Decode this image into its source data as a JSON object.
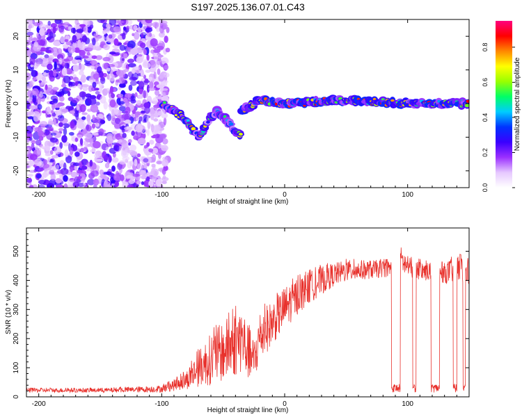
{
  "title": "S197.2025.136.07.01.C43",
  "chart_data": [
    {
      "type": "heatmap",
      "xlabel": "Height of straight line (km)",
      "ylabel": "Frequency (Hz)",
      "xlim": [
        -210,
        150
      ],
      "ylim": [
        -25,
        25
      ],
      "xticks": [
        -200,
        -100,
        0,
        100
      ],
      "yticks": [
        -20,
        -10,
        0,
        10,
        20
      ],
      "colorbar": {
        "label": "Normalized spectral amplitude",
        "range": [
          0.0,
          0.95
        ],
        "ticks": [
          "0.0",
          "0.2",
          "0.4",
          "0.6",
          "0.8"
        ],
        "colormap": [
          "#ffffff",
          "#e6c8ff",
          "#9b30ff",
          "#3a00ff",
          "#0033ff",
          "#00ccff",
          "#00ff66",
          "#99ff00",
          "#ffff00",
          "#ff8800",
          "#ff0000",
          "#ff007f"
        ]
      },
      "features": [
        {
          "desc": "noise",
          "x_range": [
            -210,
            -95
          ],
          "y_range": [
            -25,
            25
          ]
        },
        {
          "desc": "ridge",
          "points": [
            [
              -100,
              0
            ],
            [
              -90,
              -2
            ],
            [
              -80,
              -5
            ],
            [
              -75,
              -8
            ],
            [
              -70,
              -10
            ],
            [
              -60,
              -4
            ],
            [
              -55,
              -2
            ],
            [
              -50,
              -4
            ],
            [
              -45,
              -6
            ],
            [
              -40,
              -8
            ],
            [
              -35,
              -10
            ]
          ]
        },
        {
          "desc": "signal",
          "points": [
            [
              -35,
              -2
            ],
            [
              -20,
              1
            ],
            [
              0,
              0
            ],
            [
              50,
              1
            ],
            [
              100,
              0
            ],
            [
              110,
              0
            ],
            [
              140,
              0
            ],
            [
              150,
              0
            ]
          ]
        }
      ]
    },
    {
      "type": "line",
      "xlabel": "Height of straight line (km)",
      "ylabel": "SNR (10 * v/v)",
      "xlim": [
        -210,
        150
      ],
      "ylim": [
        0,
        580
      ],
      "xticks": [
        -200,
        -100,
        0,
        100
      ],
      "yticks": [
        0,
        100,
        200,
        300,
        400,
        500
      ],
      "color": "#e8312c",
      "envelope": [
        [
          -210,
          15,
          30
        ],
        [
          -180,
          15,
          30
        ],
        [
          -150,
          15,
          30
        ],
        [
          -120,
          15,
          35
        ],
        [
          -100,
          15,
          40
        ],
        [
          -90,
          20,
          60
        ],
        [
          -80,
          25,
          90
        ],
        [
          -70,
          35,
          160
        ],
        [
          -60,
          40,
          220
        ],
        [
          -50,
          50,
          260
        ],
        [
          -45,
          60,
          280
        ],
        [
          -40,
          70,
          300
        ],
        [
          -35,
          80,
          320
        ],
        [
          -30,
          60,
          250
        ],
        [
          -25,
          40,
          200
        ],
        [
          -20,
          120,
          300
        ],
        [
          -10,
          180,
          330
        ],
        [
          0,
          230,
          380
        ],
        [
          10,
          280,
          410
        ],
        [
          20,
          320,
          430
        ],
        [
          30,
          350,
          450
        ],
        [
          40,
          380,
          460
        ],
        [
          50,
          395,
          470
        ],
        [
          60,
          400,
          470
        ],
        [
          70,
          405,
          470
        ],
        [
          80,
          410,
          470
        ],
        [
          90,
          415,
          470
        ],
        [
          95,
          420,
          520
        ],
        [
          100,
          410,
          480
        ],
        [
          110,
          400,
          470
        ],
        [
          120,
          395,
          460
        ],
        [
          130,
          390,
          460
        ],
        [
          140,
          390,
          490
        ],
        [
          150,
          380,
          470
        ]
      ],
      "dropouts": [
        [
          87,
          94
        ],
        [
          104,
          107
        ],
        [
          119,
          126
        ],
        [
          137,
          140
        ],
        [
          145,
          147
        ]
      ],
      "dropout_level": 30
    }
  ]
}
